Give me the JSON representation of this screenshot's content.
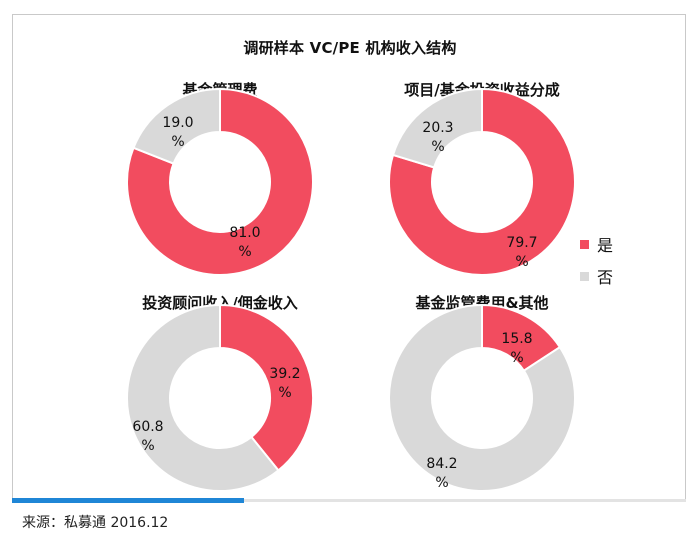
{
  "title": "调研样本 VC/PE 机构收入结构",
  "source": "来源：私募通  2016.12",
  "colors": {
    "yes": "#f24c5f",
    "no": "#d9d9d9"
  },
  "chart_data": {
    "type": "pie",
    "subtype": "donut",
    "title": "调研样本 VC/PE 机构收入结构",
    "legend": {
      "position": "right",
      "entries": [
        "是",
        "否"
      ]
    },
    "panels": [
      {
        "title": "基金管理费",
        "labels": [
          "是",
          "否"
        ],
        "values": [
          81.0,
          19.0
        ],
        "value_labels": [
          "81.0\n%",
          "19.0\n%"
        ]
      },
      {
        "title": "项目/基金投资收益分成",
        "labels": [
          "是",
          "否"
        ],
        "values": [
          79.7,
          20.3
        ],
        "value_labels": [
          "79.7\n%",
          "20.3\n%"
        ]
      },
      {
        "title": "投资顾问收入/佣金收入",
        "labels": [
          "是",
          "否"
        ],
        "values": [
          39.2,
          60.8
        ],
        "value_labels": [
          "39.2\n%",
          "60.8\n%"
        ]
      },
      {
        "title": "基金监管费用&其他",
        "labels": [
          "是",
          "否"
        ],
        "values": [
          15.8,
          84.2
        ],
        "value_labels": [
          "15.8\n%",
          "84.2\n%"
        ]
      }
    ]
  }
}
